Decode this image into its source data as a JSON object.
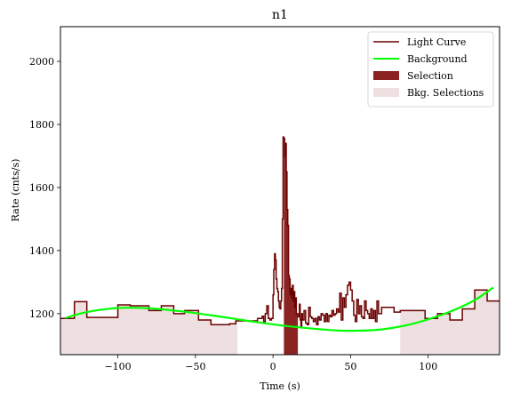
{
  "chart_data": {
    "type": "line",
    "title": "n1",
    "xlabel": "Time (s)",
    "ylabel": "Rate (cnts/s)",
    "xlim": [
      -137,
      146
    ],
    "ylim": [
      1070,
      2110
    ],
    "xticks": [
      -100,
      -50,
      0,
      50,
      100
    ],
    "yticks": [
      1200,
      1400,
      1600,
      1800,
      2000
    ],
    "xtick_labels": [
      "−100",
      "−50",
      "0",
      "50",
      "100"
    ],
    "ytick_labels": [
      "1200",
      "1400",
      "1600",
      "1800",
      "2000"
    ],
    "grid": false,
    "legend_position": "top-right",
    "colors": {
      "light_curve": "#6b0000",
      "background": "#00ff00",
      "selection": "#8b2323",
      "bkg_selection": "#eee0e0"
    },
    "series": [
      {
        "name": "Light Curve",
        "style": "step",
        "points": [
          [
            -137,
            1185
          ],
          [
            -128,
            1238
          ],
          [
            -120,
            1188
          ],
          [
            -110,
            1188
          ],
          [
            -100,
            1228
          ],
          [
            -92,
            1225
          ],
          [
            -80,
            1210
          ],
          [
            -72,
            1225
          ],
          [
            -64,
            1200
          ],
          [
            -57,
            1210
          ],
          [
            -48,
            1180
          ],
          [
            -40,
            1165
          ],
          [
            -28,
            1168
          ],
          [
            -24,
            1177
          ],
          [
            -15,
            1177
          ],
          [
            -10,
            1185
          ],
          [
            -7,
            1192
          ],
          [
            -6,
            1175
          ],
          [
            -5,
            1200
          ],
          [
            -4,
            1225
          ],
          [
            -3,
            1185
          ],
          [
            -2,
            1180
          ],
          [
            -1,
            1185
          ],
          [
            0,
            1260
          ],
          [
            0.5,
            1340
          ],
          [
            1,
            1390
          ],
          [
            1.5,
            1370
          ],
          [
            2,
            1310
          ],
          [
            2.5,
            1280
          ],
          [
            3,
            1270
          ],
          [
            3.5,
            1240
          ],
          [
            4,
            1220
          ],
          [
            4.5,
            1215
          ],
          [
            5,
            1240
          ],
          [
            5.5,
            1280
          ],
          [
            6,
            1500
          ],
          [
            6.5,
            1760
          ],
          [
            7,
            1755
          ],
          [
            7.5,
            1700
          ],
          [
            8,
            1740
          ],
          [
            8.5,
            1650
          ],
          [
            9,
            1530
          ],
          [
            9.5,
            1480
          ],
          [
            10,
            1320
          ],
          [
            10.5,
            1310
          ],
          [
            11,
            1260
          ],
          [
            11.5,
            1280
          ],
          [
            12,
            1250
          ],
          [
            12.5,
            1290
          ],
          [
            13,
            1240
          ],
          [
            13.5,
            1270
          ],
          [
            14,
            1220
          ],
          [
            14.5,
            1250
          ],
          [
            15,
            1200
          ],
          [
            15.5,
            1200
          ],
          [
            16,
            1190
          ],
          [
            17,
            1230
          ],
          [
            17.5,
            1180
          ],
          [
            18,
            1160
          ],
          [
            18.5,
            1200
          ],
          [
            19,
            1180
          ],
          [
            20,
            1210
          ],
          [
            21,
            1170
          ],
          [
            22,
            1165
          ],
          [
            23,
            1220
          ],
          [
            24,
            1190
          ],
          [
            25,
            1185
          ],
          [
            26,
            1175
          ],
          [
            27,
            1185
          ],
          [
            28,
            1165
          ],
          [
            29,
            1190
          ],
          [
            30,
            1180
          ],
          [
            31,
            1200
          ],
          [
            32,
            1195
          ],
          [
            33,
            1175
          ],
          [
            34,
            1200
          ],
          [
            35,
            1175
          ],
          [
            36,
            1195
          ],
          [
            37,
            1190
          ],
          [
            38,
            1210
          ],
          [
            39,
            1195
          ],
          [
            40,
            1200
          ],
          [
            41,
            1215
          ],
          [
            42,
            1205
          ],
          [
            43,
            1265
          ],
          [
            44,
            1180
          ],
          [
            45,
            1250
          ],
          [
            46,
            1220
          ],
          [
            47,
            1260
          ],
          [
            48,
            1290
          ],
          [
            49,
            1300
          ],
          [
            50,
            1275
          ],
          [
            51,
            1240
          ],
          [
            52,
            1195
          ],
          [
            53,
            1175
          ],
          [
            54,
            1245
          ],
          [
            55,
            1200
          ],
          [
            56,
            1225
          ],
          [
            57,
            1190
          ],
          [
            58,
            1185
          ],
          [
            59,
            1240
          ],
          [
            60,
            1210
          ],
          [
            61,
            1200
          ],
          [
            62,
            1185
          ],
          [
            63,
            1215
          ],
          [
            64,
            1185
          ],
          [
            65,
            1210
          ],
          [
            66,
            1175
          ],
          [
            67,
            1240
          ],
          [
            68,
            1200
          ],
          [
            69,
            1200
          ],
          [
            70,
            1220
          ],
          [
            78,
            1205
          ],
          [
            82,
            1210
          ],
          [
            98,
            1185
          ],
          [
            106,
            1200
          ],
          [
            114,
            1180
          ],
          [
            122,
            1215
          ],
          [
            130,
            1275
          ],
          [
            138,
            1240
          ],
          [
            146,
            1240
          ]
        ]
      },
      {
        "name": "Background",
        "style": "line",
        "points": [
          [
            -134,
            1186
          ],
          [
            -120,
            1205
          ],
          [
            -100,
            1218
          ],
          [
            -80,
            1217
          ],
          [
            -60,
            1208
          ],
          [
            -40,
            1195
          ],
          [
            -20,
            1180
          ],
          [
            0,
            1166
          ],
          [
            20,
            1155
          ],
          [
            40,
            1147
          ],
          [
            55,
            1146
          ],
          [
            70,
            1150
          ],
          [
            85,
            1162
          ],
          [
            100,
            1182
          ],
          [
            115,
            1208
          ],
          [
            130,
            1243
          ],
          [
            142,
            1283
          ]
        ]
      }
    ],
    "selection": {
      "name": "Selection",
      "range": [
        7,
        16
      ]
    },
    "bkg_selections": {
      "name": "Bkg. Selections",
      "ranges": [
        [
          -137,
          -23
        ],
        [
          82,
          146
        ]
      ]
    }
  }
}
